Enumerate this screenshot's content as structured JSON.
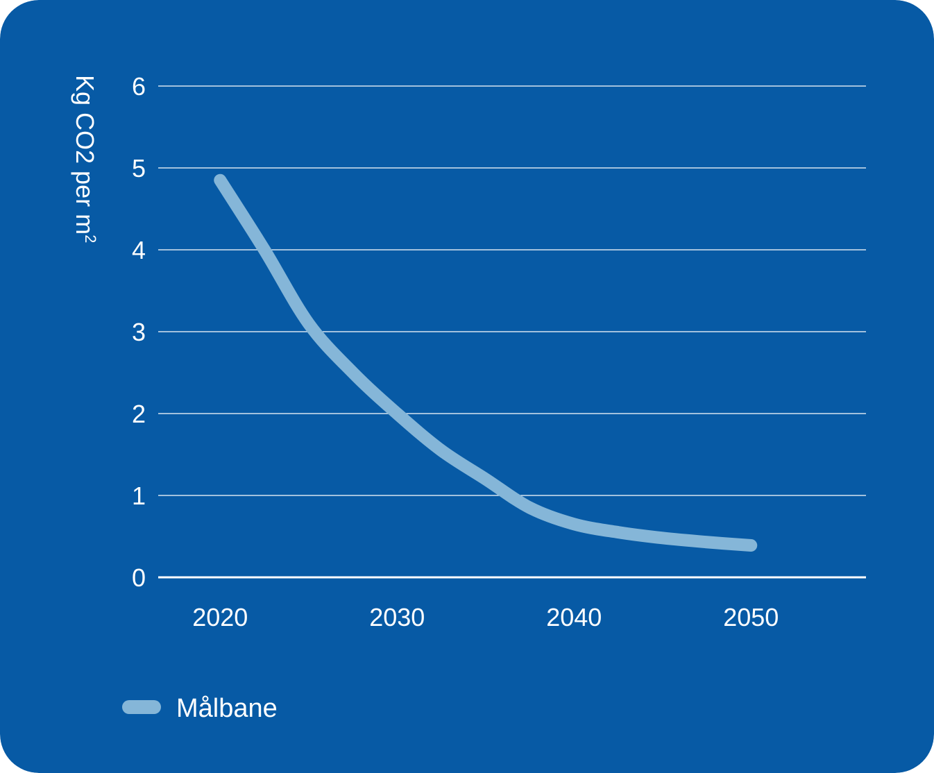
{
  "colors": {
    "background": "#075AA5",
    "grid": "#FFFFFF",
    "series": "#85B6D8",
    "text": "#FFFFFF"
  },
  "chart_data": {
    "type": "line",
    "title": "",
    "xlabel": "",
    "ylabel": "Kg CO2 per m",
    "ylabel_superscript": "2",
    "xlim": [
      2016.5,
      2056.5
    ],
    "ylim": [
      0,
      6
    ],
    "x_ticks": [
      2020,
      2030,
      2040,
      2050
    ],
    "x_tick_labels": [
      "2020",
      "2030",
      "2040",
      "2050"
    ],
    "y_ticks": [
      0,
      1,
      2,
      3,
      4,
      5,
      6
    ],
    "y_tick_labels": [
      "0",
      "1",
      "2",
      "3",
      "4",
      "5",
      "6"
    ],
    "grid": true,
    "legend_position": "bottom-left",
    "series": [
      {
        "name": "Målbane",
        "x": [
          2020,
          2022.5,
          2025,
          2027.5,
          2030,
          2032.5,
          2035,
          2037.5,
          2040,
          2042.5,
          2045,
          2047.5,
          2050
        ],
        "y": [
          4.85,
          4.0,
          3.1,
          2.5,
          2.0,
          1.55,
          1.2,
          0.85,
          0.65,
          0.55,
          0.48,
          0.43,
          0.39
        ]
      }
    ]
  }
}
